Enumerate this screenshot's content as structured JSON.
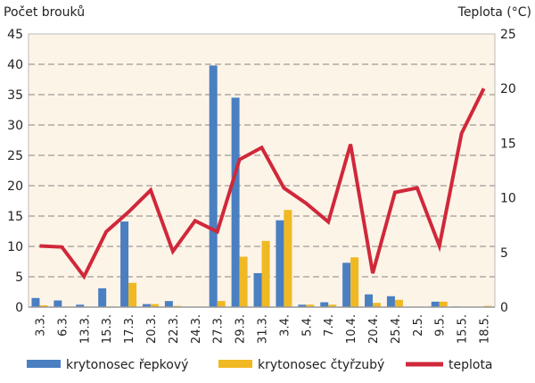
{
  "chart_data": {
    "type": "bar+line",
    "ylabel_left": "Počet brouků",
    "ylabel_right": "Teplota (°C)",
    "ylim_left": [
      0,
      45
    ],
    "ylim_right": [
      0,
      25
    ],
    "yticks_left": [
      0,
      5,
      10,
      15,
      20,
      25,
      30,
      35,
      40,
      45
    ],
    "yticks_right": [
      0,
      5,
      10,
      15,
      20,
      25
    ],
    "grid": true,
    "legend_placement": "bottom",
    "categories": [
      "3.3.",
      "6.3.",
      "13.3.",
      "15.3.",
      "17.3.",
      "20.3.",
      "22.3.",
      "24.3.",
      "27.3.",
      "29.3.",
      "31.3.",
      "3.4.",
      "5.4.",
      "7.4.",
      "10.4.",
      "20.4.",
      "25.4.",
      "2.5.",
      "9.5.",
      "15.5.",
      "18.5."
    ],
    "series": [
      {
        "name": "krytonosec řepkový",
        "type": "bar",
        "axis": "left",
        "color": "#4a7fc1",
        "values": [
          1.5,
          1.1,
          0.4,
          3.1,
          14.1,
          0.5,
          1.0,
          0,
          39.8,
          34.5,
          5.6,
          14.3,
          0.4,
          0.8,
          7.3,
          2.1,
          1.8,
          0,
          0.9,
          0.1,
          0
        ]
      },
      {
        "name": "krytonosec čtyřzubý",
        "type": "bar",
        "axis": "left",
        "color": "#f0b823",
        "values": [
          0.3,
          0,
          0,
          0.1,
          4.0,
          0.5,
          0.2,
          0,
          1.0,
          8.3,
          10.9,
          16.0,
          0.4,
          0.4,
          8.2,
          0.7,
          1.2,
          0,
          0.9,
          0,
          0.2
        ]
      },
      {
        "name": "teplota",
        "type": "line",
        "axis": "right",
        "color": "#d0283a",
        "values": [
          5.6,
          5.5,
          2.8,
          6.9,
          8.7,
          10.7,
          5.1,
          7.9,
          6.9,
          13.5,
          14.6,
          10.9,
          9.5,
          7.8,
          14.9,
          3.1,
          10.5,
          10.9,
          5.6,
          15.9,
          20.0
        ]
      }
    ]
  }
}
